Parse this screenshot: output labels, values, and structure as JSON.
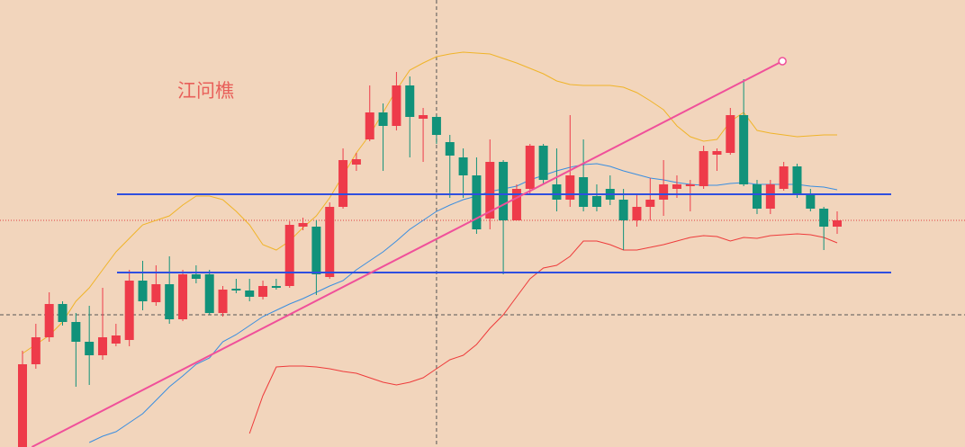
{
  "chart_data": {
    "type": "candlestick",
    "annotation": "江问樵",
    "ylim": [
      0,
      497
    ],
    "up_color": "#ee3b4a",
    "down_color": "#11927a",
    "open": [
      0,
      92,
      122,
      159,
      139,
      117,
      102,
      115,
      119,
      185,
      161,
      181,
      142,
      192,
      192,
      149,
      176,
      174,
      167,
      179,
      179,
      245,
      245,
      189,
      267,
      314,
      342,
      372,
      357,
      402,
      365,
      367,
      339,
      322,
      302,
      254,
      317,
      252,
      287,
      335,
      292,
      275,
      300,
      279,
      287,
      275,
      252,
      267,
      275,
      287,
      290,
      290,
      325,
      327,
      369,
      292,
      265,
      287,
      312,
      280,
      265,
      245
    ],
    "high": [
      107,
      137,
      172,
      162,
      149,
      157,
      177,
      137,
      197,
      207,
      202,
      212,
      197,
      202,
      197,
      179,
      187,
      187,
      185,
      187,
      251,
      255,
      252,
      272,
      332,
      327,
      402,
      382,
      417,
      412,
      377,
      369,
      347,
      332,
      322,
      342,
      319,
      292,
      337,
      337,
      332,
      369,
      342,
      292,
      302,
      287,
      282,
      299,
      319,
      302,
      297,
      335,
      332,
      377,
      409,
      297,
      297,
      317,
      315,
      287,
      267,
      262
    ],
    "low": [
      0,
      87,
      117,
      135,
      67,
      69,
      97,
      112,
      112,
      152,
      157,
      137,
      140,
      182,
      147,
      145,
      171,
      162,
      164,
      175,
      177,
      241,
      169,
      187,
      265,
      307,
      340,
      307,
      352,
      322,
      317,
      337,
      277,
      277,
      237,
      242,
      192,
      252,
      282,
      292,
      262,
      267,
      262,
      262,
      269,
      219,
      245,
      252,
      257,
      277,
      262,
      287,
      307,
      325,
      290,
      259,
      259,
      285,
      277,
      262,
      219,
      237
    ],
    "close": [
      92,
      122,
      159,
      139,
      117,
      102,
      122,
      124,
      185,
      162,
      181,
      142,
      192,
      187,
      149,
      175,
      174,
      167,
      179,
      177,
      247,
      249,
      192,
      267,
      319,
      320,
      372,
      357,
      402,
      367,
      369,
      347,
      324,
      302,
      242,
      317,
      252,
      287,
      335,
      297,
      275,
      302,
      267,
      267,
      275,
      252,
      267,
      275,
      292,
      292,
      292,
      329,
      329,
      369,
      292,
      265,
      292,
      312,
      282,
      265,
      245,
      252
    ],
    "series": [
      {
        "color": "#f0b429",
        "values": [
          104,
          114,
          124,
          139,
          162,
          177,
          197,
          217,
          232,
          247,
          252,
          257,
          269,
          279,
          279,
          275,
          262,
          247,
          225,
          219,
          229,
          244,
          257,
          277,
          302,
          327,
          347,
          372,
          397,
          419,
          427,
          434,
          437,
          439,
          438,
          437,
          432,
          427,
          421,
          415,
          407,
          403,
          402,
          402,
          402,
          400,
          394,
          385,
          375,
          357,
          345,
          340,
          342,
          362,
          372,
          352,
          349,
          347,
          345,
          346,
          347,
          347
        ]
      },
      {
        "color": "#3a8ee0",
        "values": [
          null,
          null,
          null,
          null,
          null,
          5,
          12,
          17,
          27,
          37,
          52,
          67,
          79,
          92,
          99,
          117,
          125,
          135,
          145,
          152,
          159,
          165,
          172,
          179,
          185,
          197,
          207,
          217,
          229,
          242,
          252,
          262,
          269,
          275,
          279,
          284,
          287,
          290,
          297,
          302,
          307,
          311,
          314,
          315,
          312,
          307,
          303,
          299,
          297,
          294,
          292,
          291,
          291,
          293,
          294,
          292,
          292,
          292,
          292,
          290,
          289,
          286
        ]
      },
      {
        "color": "#ee3b3b",
        "values": [
          null,
          null,
          null,
          null,
          null,
          null,
          null,
          null,
          null,
          null,
          null,
          null,
          null,
          null,
          null,
          null,
          null,
          15,
          57,
          89,
          90,
          90,
          89,
          87,
          84,
          82,
          77,
          72,
          69,
          72,
          77,
          87,
          97,
          102,
          114,
          132,
          147,
          167,
          187,
          199,
          202,
          212,
          229,
          229,
          225,
          219,
          219,
          222,
          225,
          229,
          233,
          235,
          234,
          229,
          233,
          232,
          235,
          236,
          237,
          236,
          233,
          227
        ]
      }
    ],
    "levels": [
      281,
      194
    ],
    "level_color": "#2f4fe0",
    "trendline": {
      "x": [
        0.7,
        56.9
      ],
      "values": [
        0,
        429
      ],
      "color": "#f0509a"
    },
    "price_line": 252,
    "crosshair": {
      "x": 31,
      "value": 147
    }
  }
}
